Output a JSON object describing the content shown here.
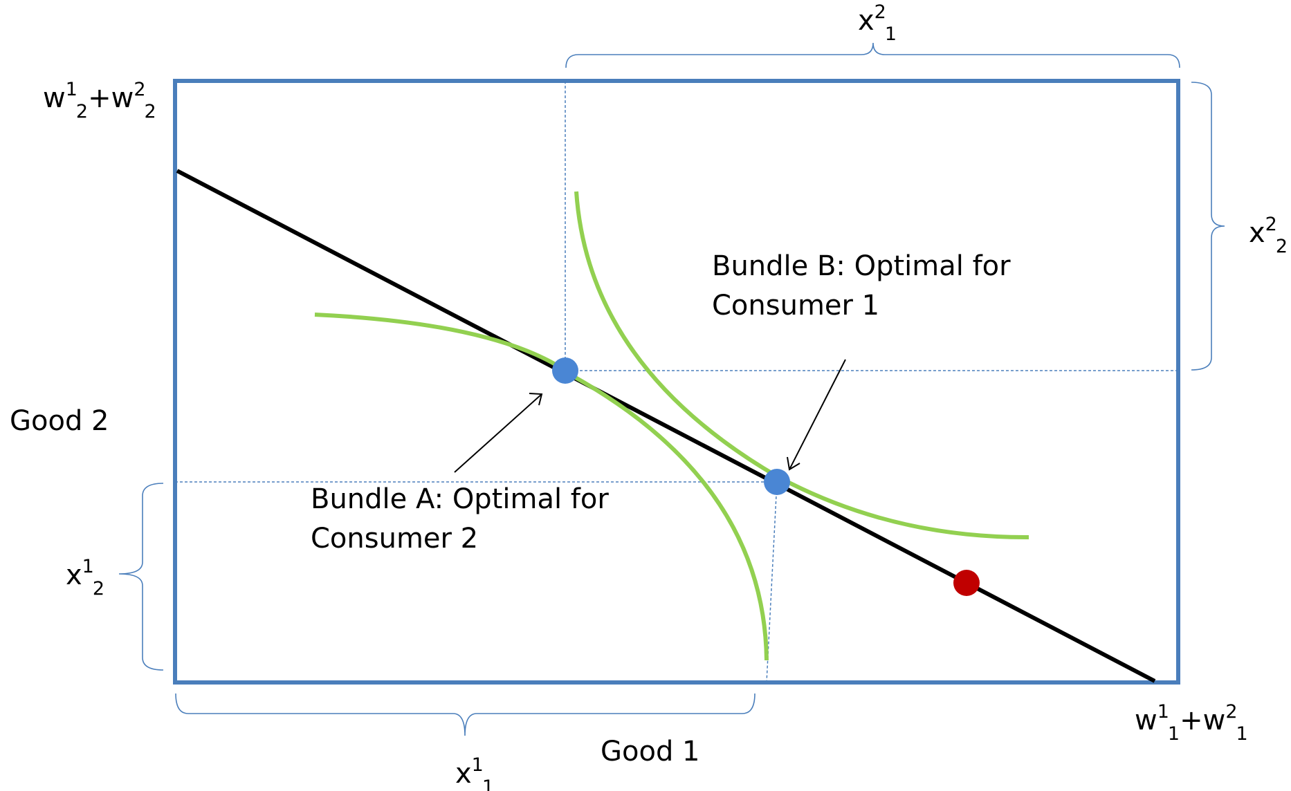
{
  "labels": {
    "x1_1": {
      "base": "x",
      "sup": "1",
      "sub": "1"
    },
    "x1_2": {
      "base": "x",
      "sup": "1",
      "sub": "2"
    },
    "x2_1": {
      "base": "x",
      "sup": "2",
      "sub": "1"
    },
    "x2_2": {
      "base": "x",
      "sup": "2",
      "sub": "2"
    },
    "w_total_2": {
      "a_base": "w",
      "a_sup": "1",
      "a_sub": "2",
      "plus": "+",
      "b_base": "w",
      "b_sup": "2",
      "b_sub": "2"
    },
    "w_total_1": {
      "a_base": "w",
      "a_sup": "1",
      "a_sub": "1",
      "plus": "+",
      "b_base": "w",
      "b_sup": "2",
      "b_sub": "1"
    },
    "good1": "Good 1",
    "good2": "Good 2",
    "bundle_a": [
      "Bundle A: Optimal  for",
      "Consumer 2"
    ],
    "bundle_b": [
      "Bundle B: Optimal for",
      "Consumer 1"
    ]
  },
  "colors": {
    "box": "#4a7ebb",
    "budget_line": "#000000",
    "indifference_curve": "#92d050",
    "bundle_point": "#4a86d4",
    "endowment_point": "#c00000",
    "guide_line": "#4a7ebb",
    "brace": "#4a7ebb"
  }
}
